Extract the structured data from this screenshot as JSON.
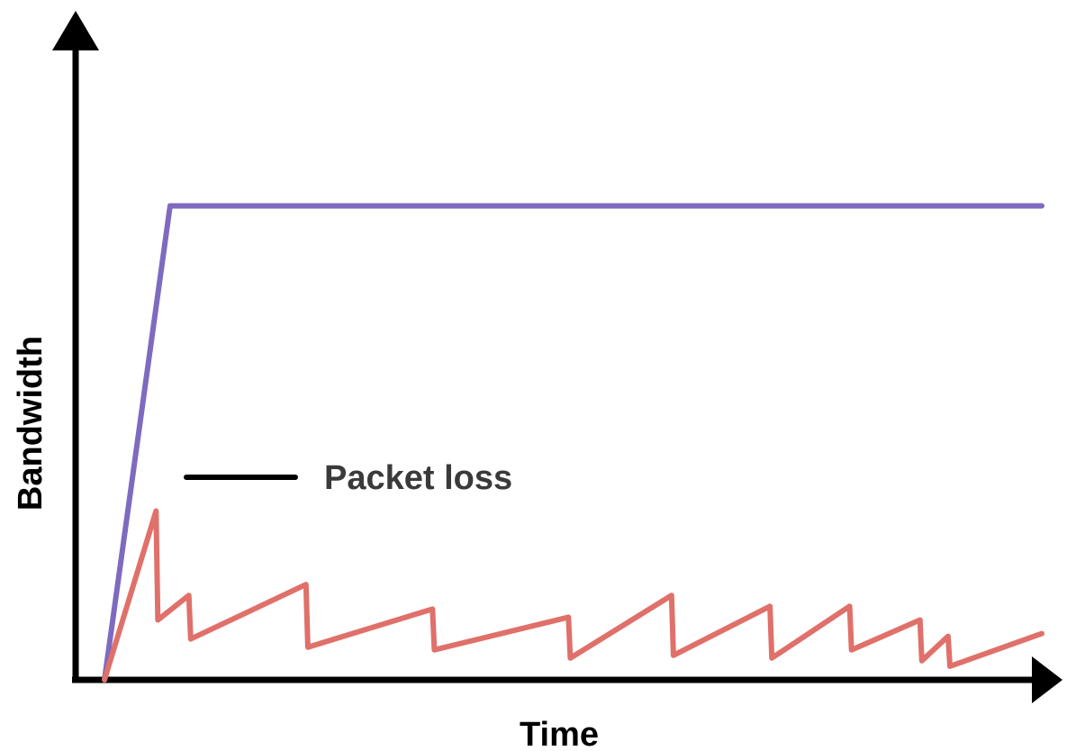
{
  "chart_data": {
    "type": "line",
    "xlabel": "Time",
    "ylabel": "Bandwidth",
    "xlim": [
      0,
      100
    ],
    "ylim": [
      0,
      100
    ],
    "grid": false,
    "colors": {
      "axis": "#000000",
      "annotation_text": "#3a3a3a"
    },
    "series": [
      {
        "color": "#7e6bbf",
        "x": [
          0,
          7,
          100
        ],
        "y": [
          0,
          87,
          87
        ]
      },
      {
        "color": "#e0706a",
        "x": [
          0,
          5.5,
          5.7,
          9,
          9.2,
          21.5,
          21.7,
          35,
          35.2,
          49.5,
          49.7,
          60.5,
          60.7,
          71,
          71.2,
          79.5,
          79.7,
          87,
          87.2,
          90,
          90.2,
          100
        ],
        "y": [
          0,
          31,
          11,
          15.5,
          7.5,
          17.5,
          6,
          13,
          5.5,
          11.5,
          4,
          15.5,
          4.5,
          13.5,
          4,
          13.5,
          5.5,
          11,
          3.5,
          8,
          2.5,
          8.5
        ]
      }
    ],
    "annotations": [
      {
        "text": "Packet loss"
      }
    ]
  }
}
